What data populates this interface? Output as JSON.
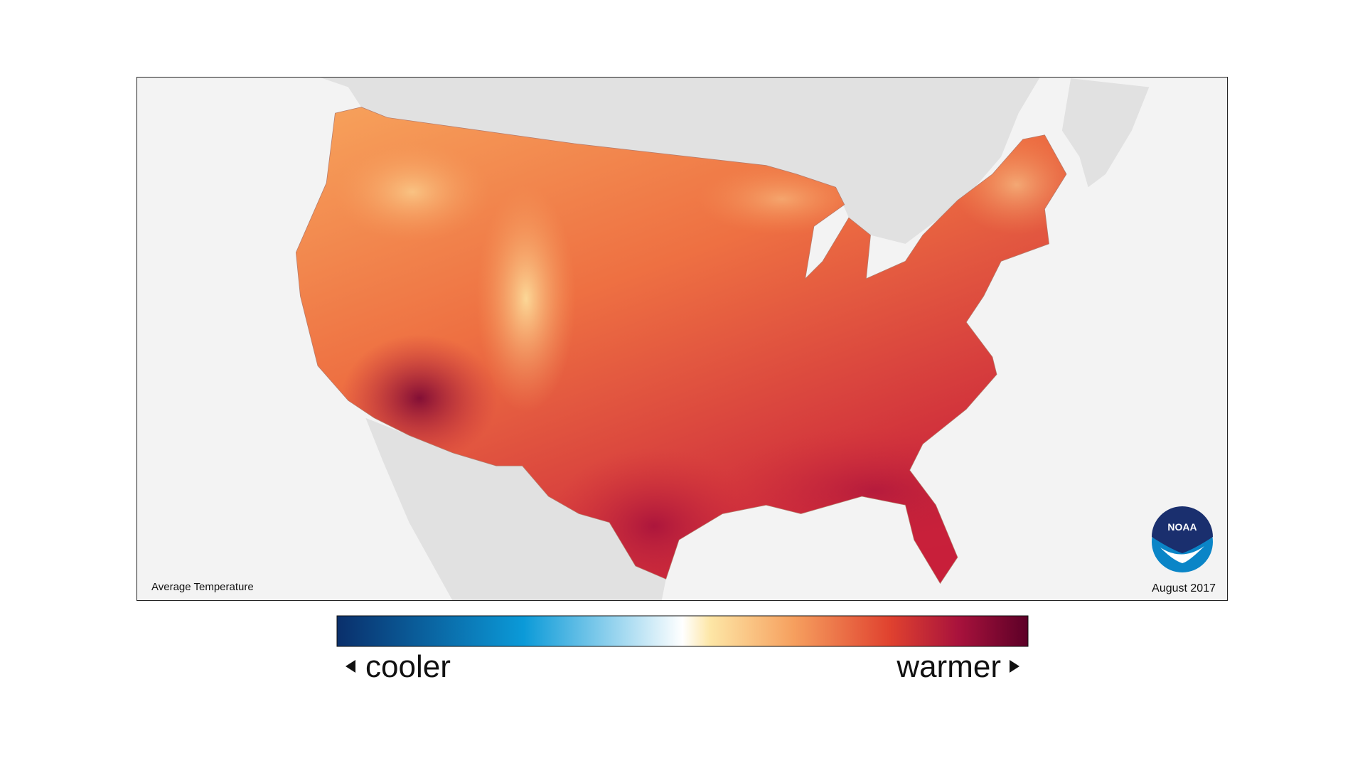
{
  "map": {
    "caption": "Average Temperature",
    "date": "August 2017",
    "logo": "NOAA"
  },
  "legend": {
    "low": "cooler",
    "high": "warmer"
  }
}
